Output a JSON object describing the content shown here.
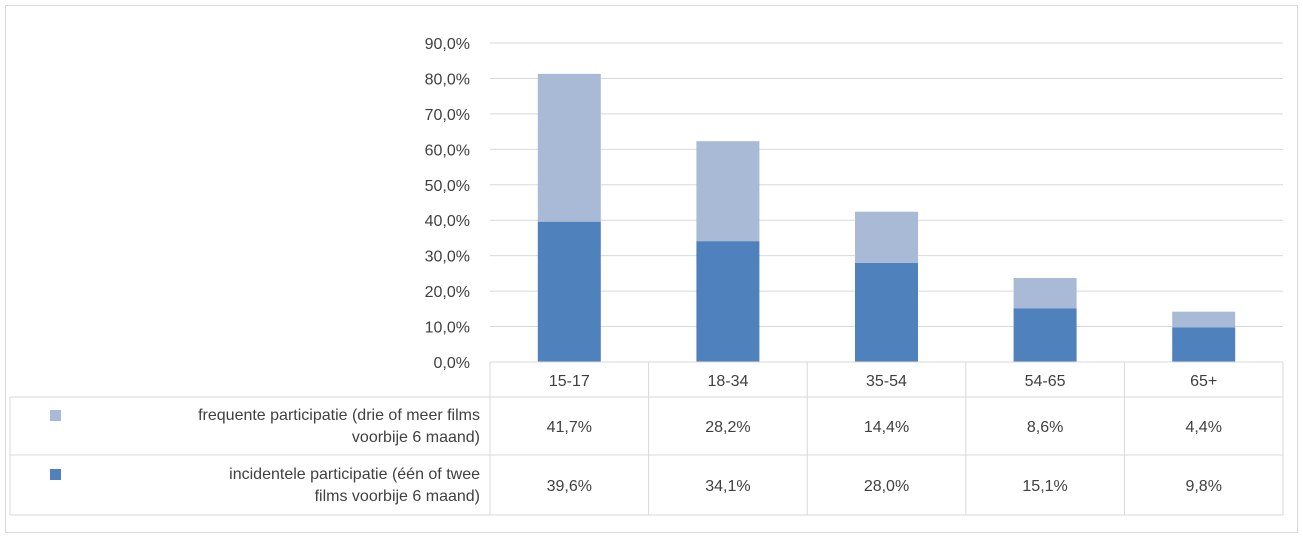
{
  "chart_data": {
    "type": "bar",
    "stacked": true,
    "categories": [
      "15-17",
      "18-34",
      "35-54",
      "54-65",
      "65+"
    ],
    "series": [
      {
        "name": "incidentele participatie (één of twee films voorbije 6 maand)",
        "name_lines": [
          "incidentele participatie (één of twee",
          "films voorbije 6 maand)"
        ],
        "values": [
          39.6,
          34.1,
          28.0,
          15.1,
          9.8
        ],
        "labels": [
          "39,6%",
          "34,1%",
          "28,0%",
          "15,1%",
          "9,8%"
        ],
        "color": "#4f81bd"
      },
      {
        "name": "frequente participatie (drie of meer films voorbije 6 maand)",
        "name_lines": [
          "frequente participatie (drie of meer films",
          "voorbije 6 maand)"
        ],
        "values": [
          41.7,
          28.2,
          14.4,
          8.6,
          4.4
        ],
        "labels": [
          "41,7%",
          "28,2%",
          "14,4%",
          "8,6%",
          "4,4%"
        ],
        "color": "#a9bad7"
      }
    ],
    "yticks": [
      "0,0%",
      "10,0%",
      "20,0%",
      "30,0%",
      "40,0%",
      "50,0%",
      "60,0%",
      "70,0%",
      "80,0%",
      "90,0%"
    ],
    "ylim": [
      0,
      90
    ],
    "grid": true,
    "legend": "data-table"
  }
}
